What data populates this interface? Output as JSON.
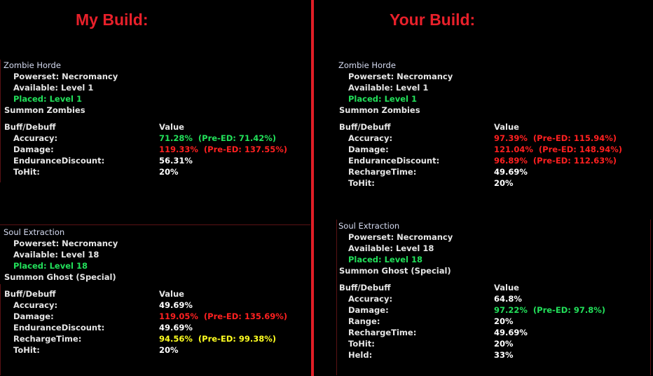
{
  "colors": {
    "red": "#ff2020",
    "green": "#22e05a",
    "yellow": "#ffff20",
    "white": "#ffffff",
    "accent": "#e01e26"
  },
  "left": {
    "heading": "My Build:",
    "powers": [
      {
        "name": "Zombie Horde",
        "powerset": "Powerset: Necromancy",
        "available": "Available: Level 1",
        "placed": "Placed: Level 1",
        "summon": "Summon Zombies",
        "buff_header": "Buff/Debuff",
        "value_header": "Value",
        "rows": [
          {
            "label": "Accuracy:",
            "value": "71.28%",
            "pre": "(Pre-ED: 71.42%)",
            "color": "green"
          },
          {
            "label": "Damage:",
            "value": "119.33%",
            "pre": "(Pre-ED: 137.55%)",
            "color": "red"
          },
          {
            "label": "EnduranceDiscount:",
            "value": "56.31%",
            "pre": "",
            "color": "white"
          },
          {
            "label": "ToHit:",
            "value": "20%",
            "pre": "",
            "color": "white"
          }
        ]
      },
      {
        "name": "Soul Extraction",
        "powerset": "Powerset: Necromancy",
        "available": "Available: Level 18",
        "placed": "Placed: Level 18",
        "summon": "Summon Ghost (Special)",
        "buff_header": "Buff/Debuff",
        "value_header": "Value",
        "rows": [
          {
            "label": "Accuracy:",
            "value": "49.69%",
            "pre": "",
            "color": "white"
          },
          {
            "label": "Damage:",
            "value": "119.05%",
            "pre": "(Pre-ED: 135.69%)",
            "color": "red"
          },
          {
            "label": "EnduranceDiscount:",
            "value": "49.69%",
            "pre": "",
            "color": "white"
          },
          {
            "label": "RechargeTime:",
            "value": "94.56%",
            "pre": "(Pre-ED: 99.38%)",
            "color": "yellow"
          },
          {
            "label": "ToHit:",
            "value": "20%",
            "pre": "",
            "color": "white"
          }
        ]
      }
    ]
  },
  "right": {
    "heading": "Your Build:",
    "powers": [
      {
        "name": "Zombie Horde",
        "powerset": "Powerset: Necromancy",
        "available": "Available: Level 1",
        "placed": "Placed: Level 1",
        "summon": "Summon Zombies",
        "buff_header": "Buff/Debuff",
        "value_header": "Value",
        "rows": [
          {
            "label": "Accuracy:",
            "value": "97.39%",
            "pre": "(Pre-ED: 115.94%)",
            "color": "red"
          },
          {
            "label": "Damage:",
            "value": "121.04%",
            "pre": "(Pre-ED: 148.94%)",
            "color": "red"
          },
          {
            "label": "EnduranceDiscount:",
            "value": "96.89%",
            "pre": "(Pre-ED: 112.63%)",
            "color": "red"
          },
          {
            "label": "RechargeTime:",
            "value": "49.69%",
            "pre": "",
            "color": "white"
          },
          {
            "label": "ToHit:",
            "value": "20%",
            "pre": "",
            "color": "white"
          }
        ]
      },
      {
        "name": "Soul Extraction",
        "powerset": "Powerset: Necromancy",
        "available": "Available: Level 18",
        "placed": "Placed: Level 18",
        "summon": "Summon Ghost (Special)",
        "buff_header": "Buff/Debuff",
        "value_header": "Value",
        "rows": [
          {
            "label": "Accuracy:",
            "value": "64.8%",
            "pre": "",
            "color": "white"
          },
          {
            "label": "Damage:",
            "value": "97.22%",
            "pre": "(Pre-ED: 97.8%)",
            "color": "green"
          },
          {
            "label": "Range:",
            "value": "20%",
            "pre": "",
            "color": "white"
          },
          {
            "label": "RechargeTime:",
            "value": "49.69%",
            "pre": "",
            "color": "white"
          },
          {
            "label": "ToHit:",
            "value": "20%",
            "pre": "",
            "color": "white"
          },
          {
            "label": "Held:",
            "value": "33%",
            "pre": "",
            "color": "white"
          }
        ]
      }
    ]
  }
}
